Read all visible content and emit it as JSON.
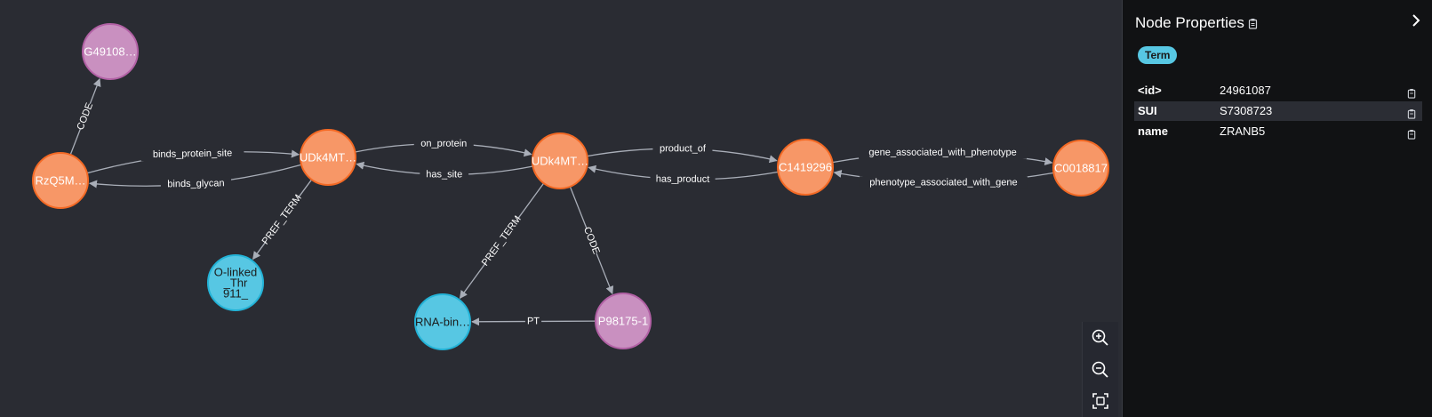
{
  "graph": {
    "nodes": [
      {
        "id": "g4910",
        "label": "G49108…",
        "lines": [
          "G49108…"
        ],
        "color": "#c990c0"
      },
      {
        "id": "rzq",
        "label": "RzQ5M…",
        "lines": [
          "RzQ5M…"
        ],
        "color": "#f79767"
      },
      {
        "id": "udk1",
        "label": "UDk4MT…",
        "lines": [
          "UDk4MT…"
        ],
        "color": "#f79767"
      },
      {
        "id": "udk2",
        "label": "UDk4MT…",
        "lines": [
          "UDk4MT…"
        ],
        "color": "#f79767"
      },
      {
        "id": "c1419",
        "label": "C1419296",
        "lines": [
          "C1419296"
        ],
        "color": "#f79767"
      },
      {
        "id": "c0018",
        "label": "C0018817",
        "lines": [
          "C0018817"
        ],
        "color": "#f79767"
      },
      {
        "id": "olinked",
        "label": "O-linked _Thr 911_",
        "lines": [
          "O-linked",
          "_Thr",
          "911_"
        ],
        "color": "#57c7e3"
      },
      {
        "id": "rnabin",
        "label": "RNA-bin…",
        "lines": [
          "RNA-bin…"
        ],
        "color": "#57c7e3"
      },
      {
        "id": "p98175",
        "label": "P98175-1",
        "lines": [
          "P98175-1"
        ],
        "color": "#c990c0"
      }
    ],
    "edges": [
      {
        "id": "e-code-1",
        "label": "CODE"
      },
      {
        "id": "e-binds-glycan",
        "label": "binds_glycan"
      },
      {
        "id": "e-binds-protein-site",
        "label": "binds_protein_site"
      },
      {
        "id": "e-has-site",
        "label": "has_site"
      },
      {
        "id": "e-on-protein",
        "label": "on_protein"
      },
      {
        "id": "e-pref-term-1",
        "label": "PREF_TERM"
      },
      {
        "id": "e-pref-term-2",
        "label": "PREF_TERM"
      },
      {
        "id": "e-code-2",
        "label": "CODE"
      },
      {
        "id": "e-pt",
        "label": "PT"
      },
      {
        "id": "e-has-product",
        "label": "has_product"
      },
      {
        "id": "e-product-of",
        "label": "product_of"
      },
      {
        "id": "e-phenotype-gene",
        "label": "phenotype_associated_with_gene"
      },
      {
        "id": "e-gene-phenotype",
        "label": "gene_associated_with_phenotype"
      }
    ],
    "edge_color": "#a9aeb8",
    "zoom_controls": [
      "zoom-in-icon",
      "zoom-out-icon",
      "fit-to-screen-icon"
    ]
  },
  "panel": {
    "title": "Node Properties",
    "label_chip": "Term",
    "label_chip_color": "#57c7e3",
    "properties": [
      {
        "key": "<id>",
        "value": "24961087"
      },
      {
        "key": "SUI",
        "value": "S7308723"
      },
      {
        "key": "name",
        "value": "ZRANB5"
      }
    ],
    "icons": [
      "copy-icon",
      "chevron-right-icon"
    ]
  }
}
